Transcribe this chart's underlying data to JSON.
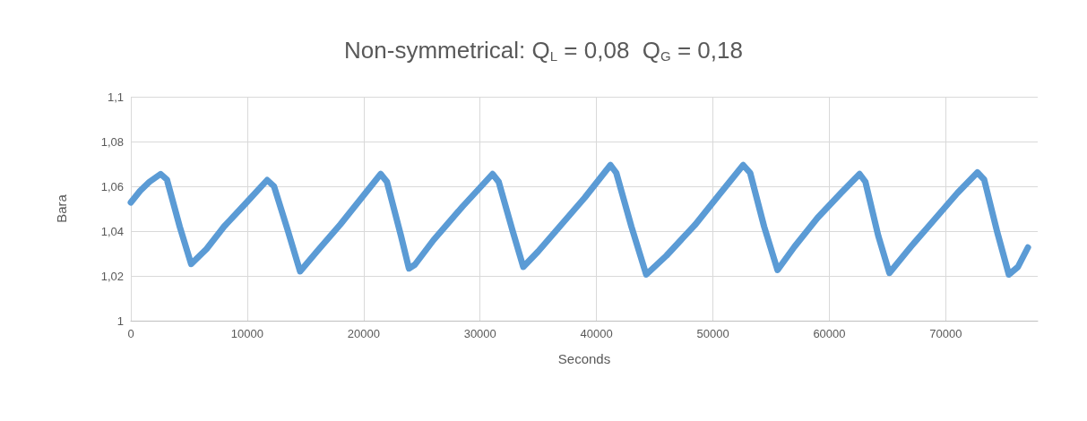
{
  "chart_data": {
    "type": "line",
    "title": "Non-symmetrical: Q$_{L}$ = 0,08  Q$_{G}$ = 0,18",
    "xlabel": "Seconds",
    "ylabel": "Bara",
    "xlim": [
      0,
      77900
    ],
    "xticks": [
      0,
      10000,
      20000,
      30000,
      40000,
      50000,
      60000,
      70000
    ],
    "ylim": [
      1,
      1.1
    ],
    "yticks": [
      {
        "value": 1,
        "label": "1"
      },
      {
        "value": 1.02,
        "label": "1,02"
      },
      {
        "value": 1.04,
        "label": "1,04"
      },
      {
        "value": 1.06,
        "label": "1,06"
      },
      {
        "value": 1.08,
        "label": "1,08"
      },
      {
        "value": 1.1,
        "label": "1,1"
      }
    ],
    "grid": true,
    "marker": "none",
    "line_style": "solid",
    "series": [
      {
        "color": "#5b9bd5",
        "x": [
          0,
          800,
          1600,
          2560,
          3100,
          4200,
          5180,
          6500,
          8000,
          9800,
          11710,
          12300,
          13500,
          14540,
          16000,
          18000,
          20000,
          21460,
          22000,
          23200,
          23890,
          24400,
          26000,
          28500,
          31070,
          31600,
          32800,
          33710,
          35000,
          37000,
          39000,
          41200,
          41700,
          43000,
          44270,
          46000,
          48500,
          50500,
          52600,
          53200,
          54400,
          55550,
          57000,
          59000,
          61000,
          62600,
          63100,
          64200,
          65160,
          67000,
          69000,
          71000,
          72720,
          73300,
          74400,
          75420,
          76200,
          77060
        ],
        "values": [
          1.0528,
          1.058,
          1.062,
          1.0655,
          1.063,
          1.042,
          1.0253,
          1.032,
          1.042,
          1.052,
          1.0628,
          1.06,
          1.04,
          1.022,
          1.031,
          1.043,
          1.056,
          1.0655,
          1.062,
          1.038,
          1.0233,
          1.025,
          1.036,
          1.051,
          1.0655,
          1.062,
          1.04,
          1.024,
          1.031,
          1.043,
          1.055,
          1.0695,
          1.066,
          1.042,
          1.0206,
          1.029,
          1.043,
          1.056,
          1.0695,
          1.066,
          1.042,
          1.0226,
          1.033,
          1.046,
          1.057,
          1.0655,
          1.062,
          1.038,
          1.0213,
          1.033,
          1.045,
          1.057,
          1.0662,
          1.063,
          1.04,
          1.0206,
          1.024,
          1.0327
        ]
      }
    ]
  }
}
